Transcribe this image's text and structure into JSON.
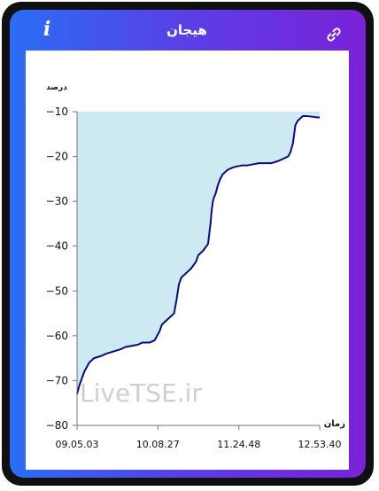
{
  "header": {
    "title": "هیجان",
    "info_icon": "info-icon",
    "link_icon": "link-icon"
  },
  "colors": {
    "gradient_start": "#2a6df4",
    "gradient_end": "#7a22d8",
    "line": "#0a0a7a",
    "fill": "#cde9f1"
  },
  "chart_data": {
    "type": "area",
    "ylabel": "درصد",
    "xlabel": "زمان",
    "ylim": [
      -80,
      -10
    ],
    "yticks": [
      -10,
      -20,
      -30,
      -40,
      -50,
      -60,
      -70,
      -80
    ],
    "ytick_labels": [
      "−10",
      "−20",
      "−30",
      "−40",
      "−50",
      "−60",
      "−70",
      "−80"
    ],
    "xtick_labels": [
      "09.05.03",
      "10.08.27",
      "11.24.48",
      "12.53.40"
    ],
    "x_fraction_ticks": [
      0,
      0.333,
      0.667,
      1
    ],
    "watermark": "LiveTSE.ir",
    "series": [
      {
        "x": [
          0,
          0.01,
          0.02,
          0.03,
          0.04,
          0.05,
          0.07,
          0.1,
          0.12,
          0.15,
          0.18,
          0.2,
          0.25,
          0.27,
          0.3,
          0.32,
          0.33,
          0.34,
          0.35,
          0.37,
          0.38,
          0.39,
          0.4,
          0.41,
          0.42,
          0.43,
          0.45,
          0.47,
          0.49,
          0.5,
          0.52,
          0.54,
          0.55,
          0.555,
          0.56,
          0.565,
          0.57,
          0.575,
          0.58,
          0.59,
          0.6,
          0.62,
          0.64,
          0.66,
          0.68,
          0.7,
          0.72,
          0.75,
          0.78,
          0.8,
          0.83,
          0.85,
          0.87,
          0.88,
          0.89,
          0.9,
          0.91,
          0.92,
          0.93,
          0.95,
          0.98,
          1.0
        ],
        "y": [
          -73,
          -71,
          -69.5,
          -68,
          -67,
          -66,
          -65,
          -64.5,
          -64,
          -63.5,
          -63,
          -62.5,
          -62,
          -61.5,
          -61.5,
          -61,
          -60,
          -59,
          -57.5,
          -56.5,
          -56,
          -55.5,
          -55,
          -52,
          -48.5,
          -47,
          -46,
          -45,
          -43.5,
          -42,
          -41,
          -39.5,
          -35,
          -32,
          -30,
          -29,
          -28.5,
          -27.5,
          -26.5,
          -25,
          -24,
          -23,
          -22.5,
          -22.2,
          -22,
          -22,
          -21.8,
          -21.5,
          -21.5,
          -21.5,
          -21,
          -20.5,
          -20,
          -19,
          -17,
          -13,
          -12,
          -11.5,
          -11,
          -11,
          -11.2,
          -11.3
        ]
      }
    ]
  }
}
